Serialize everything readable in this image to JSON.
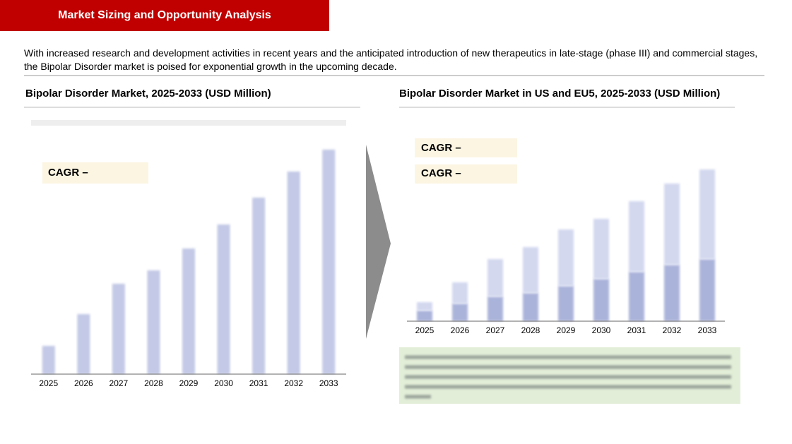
{
  "header": {
    "title": "Market Sizing and Opportunity Analysis"
  },
  "intro": "With increased research and development activities in recent years and the anticipated introduction of new therapeutics in late-stage (phase III) and commercial stages, the Bipolar Disorder market is poised for exponential growth in the upcoming decade.",
  "chart_data": [
    {
      "type": "bar",
      "title": "Bipolar Disorder Market, 2025-2033 (USD Million)",
      "categories": [
        "2025",
        "2026",
        "2027",
        "2028",
        "2029",
        "2030",
        "2031",
        "2032",
        "2033"
      ],
      "values": [
        40,
        85,
        128,
        147,
        178,
        212,
        250,
        287,
        318
      ],
      "color": "#c3c9e6",
      "ylim": [
        0,
        340
      ],
      "cagr_label": "CAGR –"
    },
    {
      "type": "stacked_bar",
      "title": "Bipolar Disorder Market in US and EU5, 2025-2033 (USD Million)",
      "categories": [
        "2025",
        "2026",
        "2027",
        "2028",
        "2029",
        "2030",
        "2031",
        "2032",
        "2033"
      ],
      "series": [
        {
          "color": "#aab3da",
          "values": [
            15,
            25,
            35,
            40,
            50,
            60,
            70,
            80,
            88
          ]
        },
        {
          "color": "#d3d8ef",
          "values": [
            12,
            30,
            53,
            65,
            80,
            85,
            100,
            115,
            127
          ]
        }
      ],
      "ylim": [
        0,
        250
      ],
      "cagr_labels": [
        "CAGR –",
        "CAGR –"
      ]
    }
  ]
}
